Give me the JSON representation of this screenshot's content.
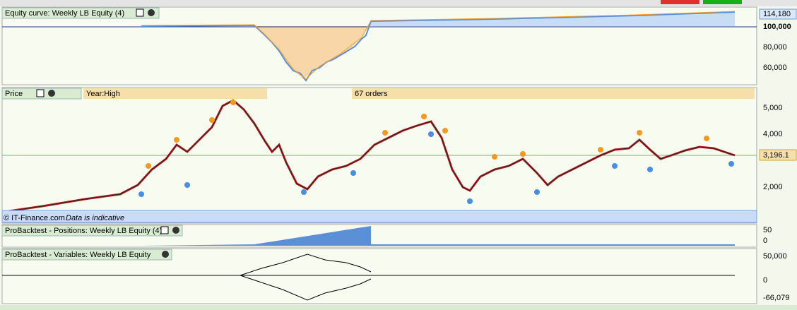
{
  "equity": {
    "title": "Equity curve: Weekly LB Equity (4)",
    "axis": [
      "114,180",
      "100,000",
      "80,000",
      "60,000"
    ]
  },
  "price": {
    "title": "Price",
    "info": "Year:High",
    "orders": "67 orders",
    "axis": [
      "5,000",
      "4,000",
      "3,196.1",
      "2,000"
    ],
    "copyright": "© IT-Finance.com",
    "note": "Data is indicative"
  },
  "positions": {
    "title": "ProBacktest - Positions: Weekly LB Equity (4)",
    "axis": [
      "50",
      "0"
    ]
  },
  "variables": {
    "title": "ProBacktest - Variables: Weekly LB Equity",
    "axis": [
      "50,000",
      "0",
      "-66,079"
    ]
  }
}
